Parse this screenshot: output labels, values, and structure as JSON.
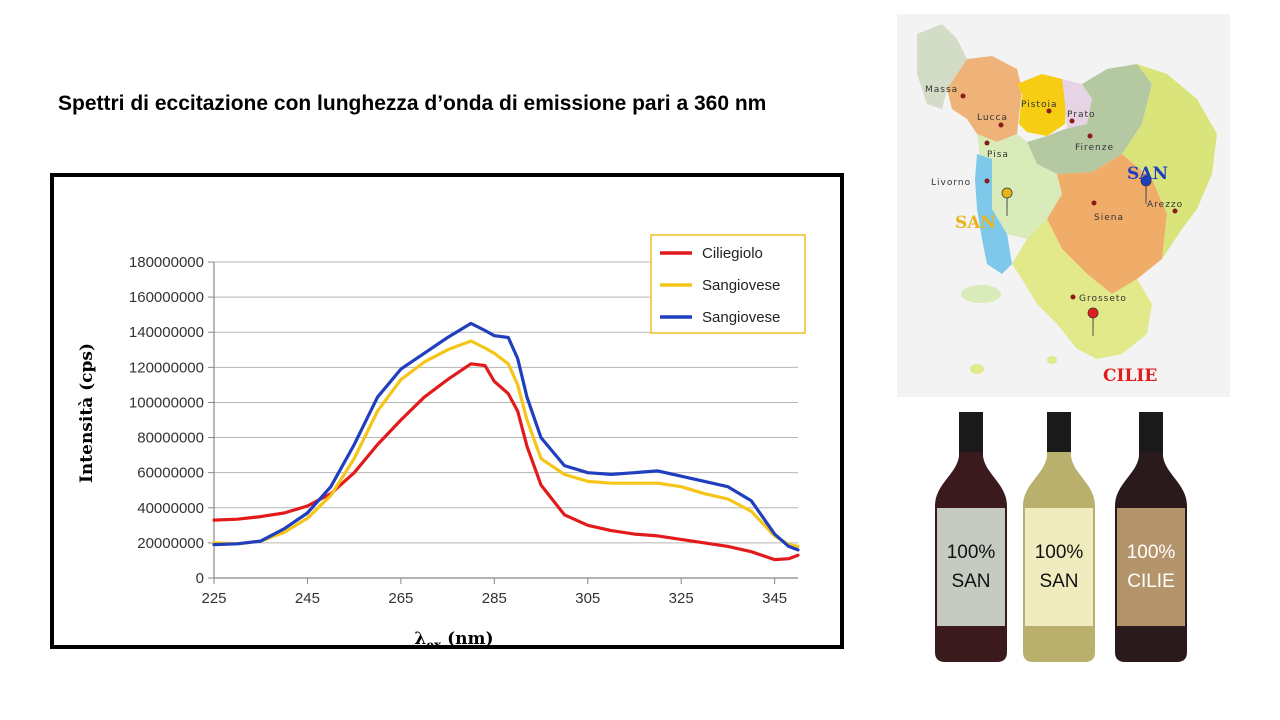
{
  "slide": {
    "title": "Spettri di eccitazione con lunghezza d’onda di emissione pari a 360 nm"
  },
  "chart_data": {
    "type": "line",
    "xlabel_main": "λ",
    "xlabel_sub": "ex",
    "xlabel_unit": "(nm)",
    "ylabel": "Intensità (cps)",
    "xlim": [
      225,
      350
    ],
    "ylim": [
      0,
      180000000
    ],
    "x_ticks": [
      225,
      245,
      265,
      285,
      305,
      325,
      345
    ],
    "y_ticks": [
      0,
      20000000,
      40000000,
      60000000,
      80000000,
      100000000,
      120000000,
      140000000,
      160000000,
      180000000
    ],
    "grid": true,
    "legend_position": "top-right",
    "series": [
      {
        "name": "Ciliegiolo",
        "color": "#e31a1c",
        "points": [
          [
            225,
            33000000
          ],
          [
            230,
            33500000
          ],
          [
            235,
            35000000
          ],
          [
            240,
            37000000
          ],
          [
            245,
            41000000
          ],
          [
            250,
            48000000
          ],
          [
            255,
            60000000
          ],
          [
            260,
            76000000
          ],
          [
            265,
            90000000
          ],
          [
            270,
            103000000
          ],
          [
            275,
            113000000
          ],
          [
            280,
            122000000
          ],
          [
            283,
            121000000
          ],
          [
            285,
            112000000
          ],
          [
            288,
            105000000
          ],
          [
            290,
            95000000
          ],
          [
            292,
            75000000
          ],
          [
            295,
            53000000
          ],
          [
            300,
            36000000
          ],
          [
            305,
            30000000
          ],
          [
            310,
            27000000
          ],
          [
            315,
            25000000
          ],
          [
            320,
            24000000
          ],
          [
            325,
            22000000
          ],
          [
            330,
            20000000
          ],
          [
            335,
            18000000
          ],
          [
            340,
            15000000
          ],
          [
            345,
            10500000
          ],
          [
            348,
            11000000
          ],
          [
            350,
            13000000
          ]
        ]
      },
      {
        "name": "Sangiovese",
        "color": "#f5c518",
        "points": [
          [
            225,
            20000000
          ],
          [
            230,
            19500000
          ],
          [
            235,
            21000000
          ],
          [
            240,
            26000000
          ],
          [
            245,
            34000000
          ],
          [
            250,
            47000000
          ],
          [
            255,
            68000000
          ],
          [
            260,
            95000000
          ],
          [
            265,
            113000000
          ],
          [
            270,
            123000000
          ],
          [
            275,
            130000000
          ],
          [
            280,
            135000000
          ],
          [
            283,
            131000000
          ],
          [
            285,
            128000000
          ],
          [
            288,
            122000000
          ],
          [
            290,
            110000000
          ],
          [
            292,
            90000000
          ],
          [
            295,
            68000000
          ],
          [
            300,
            59000000
          ],
          [
            305,
            55000000
          ],
          [
            310,
            54000000
          ],
          [
            315,
            54000000
          ],
          [
            320,
            54000000
          ],
          [
            325,
            52000000
          ],
          [
            330,
            48000000
          ],
          [
            335,
            45000000
          ],
          [
            340,
            38000000
          ],
          [
            345,
            24000000
          ],
          [
            348,
            19000000
          ],
          [
            350,
            18000000
          ]
        ]
      },
      {
        "name": "Sangiovese",
        "color": "#1f3fbf",
        "points": [
          [
            225,
            19000000
          ],
          [
            230,
            19500000
          ],
          [
            235,
            21000000
          ],
          [
            240,
            28000000
          ],
          [
            245,
            37000000
          ],
          [
            250,
            52000000
          ],
          [
            255,
            76000000
          ],
          [
            260,
            103000000
          ],
          [
            265,
            119000000
          ],
          [
            270,
            128000000
          ],
          [
            275,
            137000000
          ],
          [
            280,
            145000000
          ],
          [
            283,
            141000000
          ],
          [
            285,
            138000000
          ],
          [
            288,
            137000000
          ],
          [
            290,
            125000000
          ],
          [
            292,
            103000000
          ],
          [
            295,
            80000000
          ],
          [
            300,
            64000000
          ],
          [
            305,
            60000000
          ],
          [
            310,
            59000000
          ],
          [
            315,
            60000000
          ],
          [
            320,
            61000000
          ],
          [
            325,
            58000000
          ],
          [
            330,
            55000000
          ],
          [
            335,
            52000000
          ],
          [
            340,
            44000000
          ],
          [
            345,
            25000000
          ],
          [
            348,
            18000000
          ],
          [
            350,
            16000000
          ]
        ]
      }
    ]
  },
  "map": {
    "cities": [
      "Massa",
      "Lucca",
      "Pistoia",
      "Prato",
      "Pisa",
      "Firenze",
      "Livorno",
      "Siena",
      "Arezzo",
      "Grosseto"
    ],
    "markers": [
      {
        "label": "SAN",
        "color": "#1f3fbf"
      },
      {
        "label": "SAN",
        "color": "#e8b41a"
      },
      {
        "label": "CILIE",
        "color": "#e01e1e"
      }
    ]
  },
  "bottles": [
    {
      "line1": "100%",
      "line2": "SAN",
      "label_color": "#c5cbc1",
      "glass_color": "#3a1a1d",
      "text_color": "#111111"
    },
    {
      "line1": "100%",
      "line2": "SAN",
      "label_color": "#f1ecc0",
      "glass_color": "#b9b06e",
      "text_color": "#111111"
    },
    {
      "line1": "100%",
      "line2": "CILIE",
      "label_color": "#b4946a",
      "glass_color": "#2a1a1c",
      "text_color": "#ffffff"
    }
  ]
}
